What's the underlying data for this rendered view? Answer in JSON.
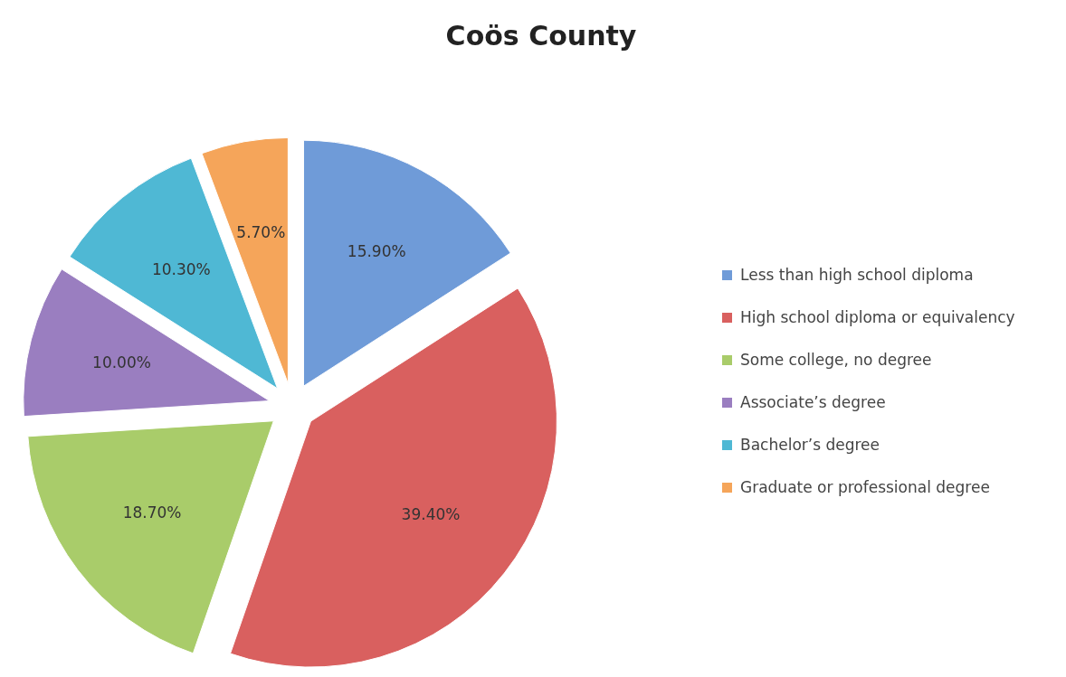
{
  "chart_data": {
    "type": "pie",
    "title": "Coös County",
    "categories": [
      "Less than high school diploma",
      "High school diploma or equivalency",
      "Some college, no degree",
      "Associate’s degree",
      "Bachelor’s degree",
      "Graduate or professional degree"
    ],
    "values": [
      15.9,
      39.4,
      18.7,
      10.0,
      10.3,
      5.7
    ],
    "value_labels": [
      "15.90%",
      "39.40%",
      "18.70%",
      "10.00%",
      "10.30%",
      "5.70%"
    ],
    "colors": [
      "#6f9bd8",
      "#d9605f",
      "#a9cc6a",
      "#9a7ec0",
      "#4fb8d4",
      "#f5a55a"
    ],
    "legend": "right"
  }
}
